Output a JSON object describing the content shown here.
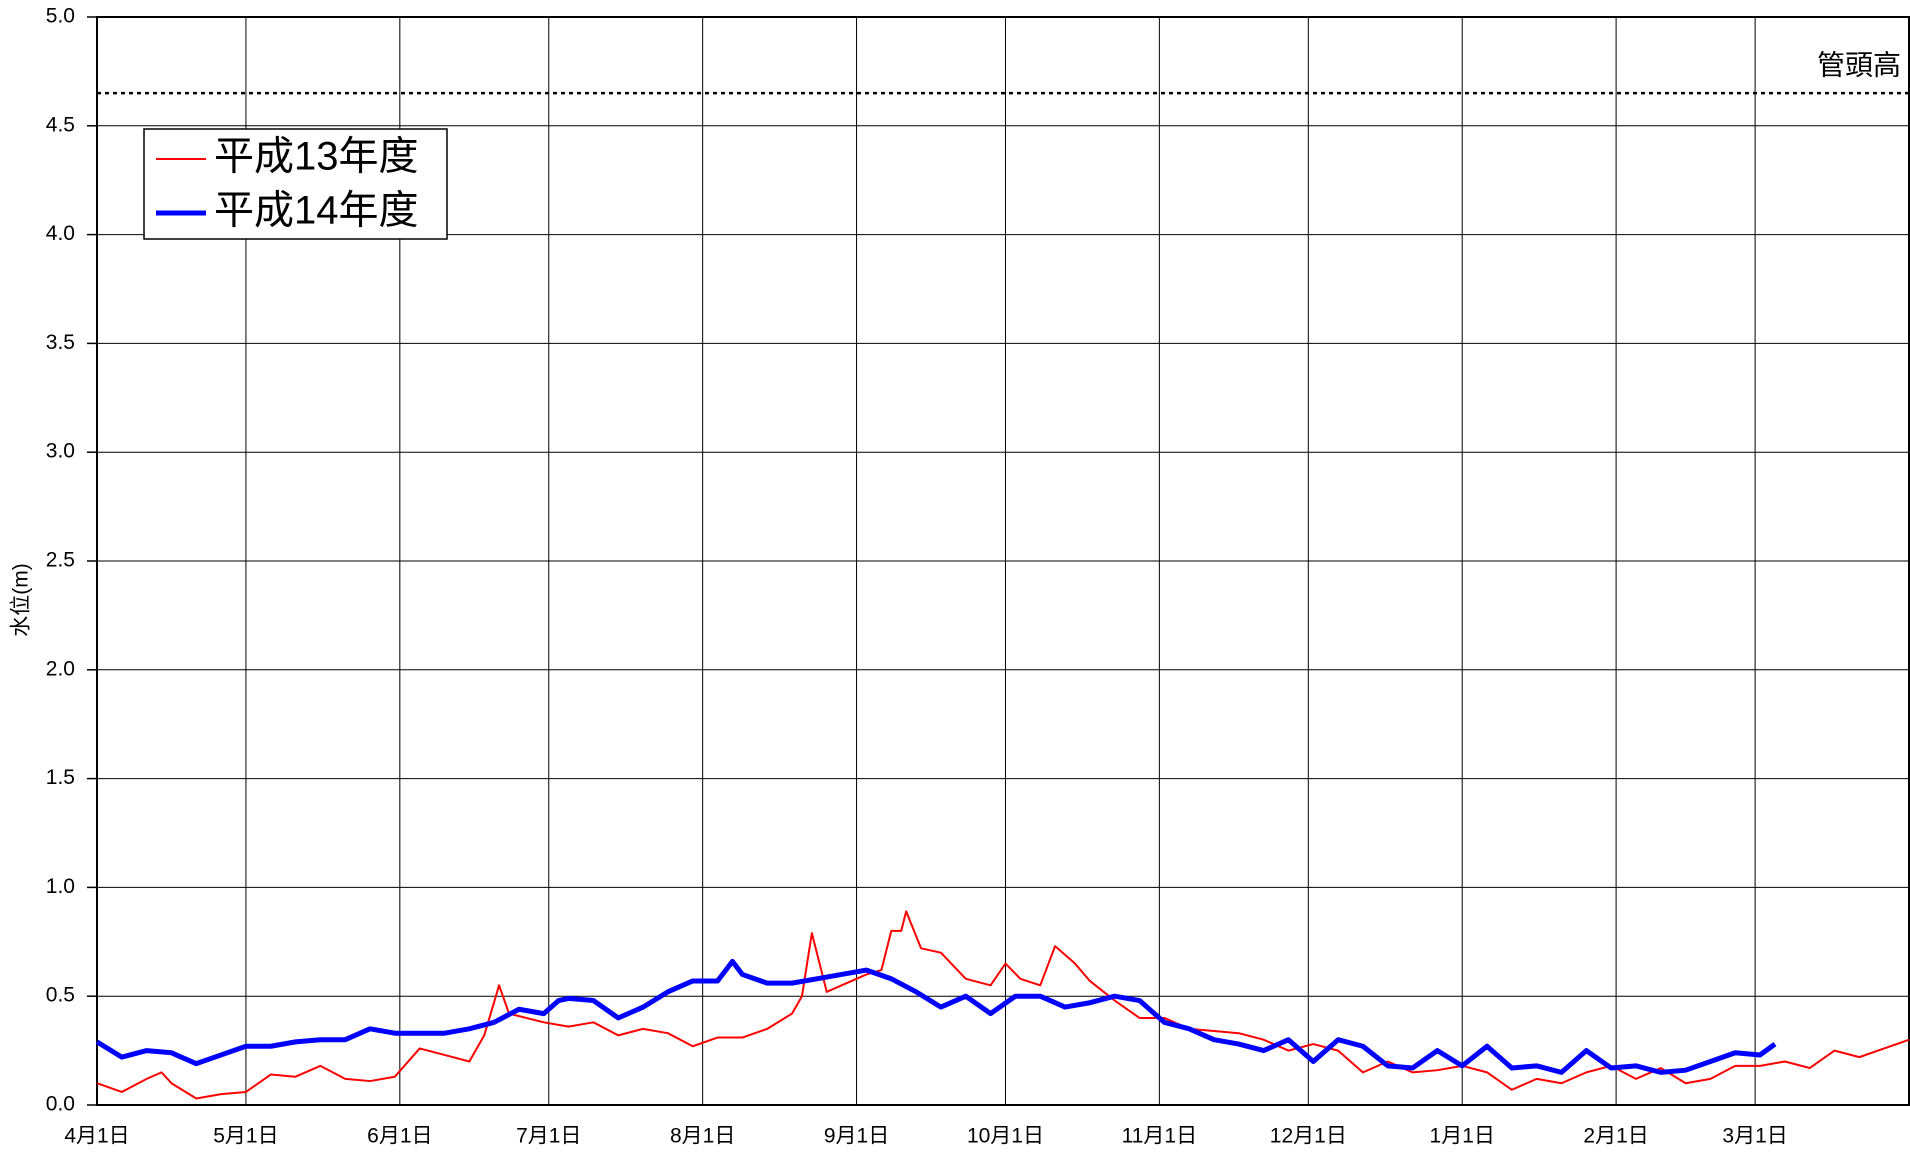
{
  "chart_data": {
    "type": "line",
    "ylabel": "水位(m)",
    "xlim": [
      0,
      365
    ],
    "xticks": [
      {
        "value": 0,
        "label": "4月1日"
      },
      {
        "value": 30,
        "label": "5月1日"
      },
      {
        "value": 61,
        "label": "6月1日"
      },
      {
        "value": 91,
        "label": "7月1日"
      },
      {
        "value": 122,
        "label": "8月1日"
      },
      {
        "value": 153,
        "label": "9月1日"
      },
      {
        "value": 183,
        "label": "10月1日"
      },
      {
        "value": 214,
        "label": "11月1日"
      },
      {
        "value": 244,
        "label": "12月1日"
      },
      {
        "value": 275,
        "label": "1月1日"
      },
      {
        "value": 306,
        "label": "2月1日"
      },
      {
        "value": 334,
        "label": "3月1日"
      }
    ],
    "ylim": [
      0,
      5
    ],
    "yticks": [
      {
        "value": 0,
        "label": "0.0"
      },
      0.5,
      {
        "value": 1,
        "label": "1.0"
      },
      1.5,
      {
        "value": 2,
        "label": "2.0"
      },
      2.5,
      {
        "value": 3,
        "label": "3.0"
      },
      3.5,
      {
        "value": 4,
        "label": "4.0"
      },
      4.5,
      {
        "value": 5,
        "label": "5.0"
      }
    ],
    "grid": true,
    "legend": "upper left",
    "annotations": [
      {
        "value": 4.65,
        "label": "管頭高"
      }
    ],
    "series": [
      {
        "name": "平成13年度",
        "color": "#ff0000",
        "x": [
          0,
          5,
          10,
          13,
          15,
          20,
          25,
          30,
          35,
          40,
          45,
          50,
          55,
          60,
          65,
          70,
          75,
          78,
          81,
          83,
          90,
          95,
          100,
          105,
          110,
          115,
          120,
          125,
          130,
          135,
          140,
          142,
          144,
          147,
          150,
          155,
          158,
          160,
          162,
          163,
          166,
          170,
          175,
          180,
          183,
          186,
          190,
          193,
          197,
          200,
          205,
          210,
          215,
          220,
          225,
          230,
          235,
          240,
          245,
          250,
          255,
          260,
          265,
          270,
          275,
          280,
          285,
          290,
          295,
          300,
          305,
          310,
          315,
          320,
          325,
          330,
          335,
          340,
          345,
          350,
          355,
          360,
          365
        ],
        "values": [
          0.1,
          0.06,
          0.12,
          0.15,
          0.1,
          0.03,
          0.05,
          0.06,
          0.14,
          0.13,
          0.18,
          0.12,
          0.11,
          0.13,
          0.26,
          0.23,
          0.2,
          0.32,
          0.55,
          0.42,
          0.38,
          0.36,
          0.38,
          0.32,
          0.35,
          0.33,
          0.27,
          0.31,
          0.31,
          0.35,
          0.42,
          0.5,
          0.79,
          0.52,
          0.55,
          0.6,
          0.62,
          0.8,
          0.8,
          0.89,
          0.72,
          0.7,
          0.58,
          0.55,
          0.65,
          0.58,
          0.55,
          0.73,
          0.65,
          0.57,
          0.48,
          0.4,
          0.4,
          0.35,
          0.34,
          0.33,
          0.3,
          0.25,
          0.28,
          0.25,
          0.15,
          0.2,
          0.15,
          0.16,
          0.18,
          0.15,
          0.07,
          0.12,
          0.1,
          0.15,
          0.18,
          0.12,
          0.17,
          0.1,
          0.12,
          0.18,
          0.18,
          0.2,
          0.17,
          0.25,
          0.22,
          0.26,
          0.3
        ]
      },
      {
        "name": "平成14年度",
        "color": "#0000ff",
        "x": [
          0,
          5,
          10,
          15,
          20,
          25,
          30,
          35,
          40,
          45,
          50,
          55,
          60,
          65,
          70,
          75,
          80,
          85,
          90,
          93,
          95,
          100,
          105,
          110,
          115,
          120,
          125,
          128,
          130,
          135,
          140,
          145,
          150,
          155,
          160,
          165,
          170,
          175,
          180,
          185,
          190,
          195,
          200,
          205,
          210,
          215,
          220,
          225,
          230,
          235,
          240,
          245,
          250,
          255,
          260,
          265,
          270,
          275,
          280,
          285,
          290,
          295,
          300,
          305,
          310,
          315,
          320,
          325,
          330,
          335,
          338
        ],
        "values": [
          0.29,
          0.22,
          0.25,
          0.24,
          0.19,
          0.23,
          0.27,
          0.27,
          0.29,
          0.3,
          0.3,
          0.35,
          0.33,
          0.33,
          0.33,
          0.35,
          0.38,
          0.44,
          0.42,
          0.48,
          0.49,
          0.48,
          0.4,
          0.45,
          0.52,
          0.57,
          0.57,
          0.66,
          0.6,
          0.56,
          0.56,
          0.58,
          0.6,
          0.62,
          0.58,
          0.52,
          0.45,
          0.5,
          0.42,
          0.5,
          0.5,
          0.45,
          0.47,
          0.5,
          0.48,
          0.38,
          0.35,
          0.3,
          0.28,
          0.25,
          0.3,
          0.2,
          0.3,
          0.27,
          0.18,
          0.17,
          0.25,
          0.18,
          0.27,
          0.17,
          0.18,
          0.15,
          0.25,
          0.17,
          0.18,
          0.15,
          0.16,
          0.2,
          0.24,
          0.23,
          0.28
        ]
      }
    ]
  }
}
